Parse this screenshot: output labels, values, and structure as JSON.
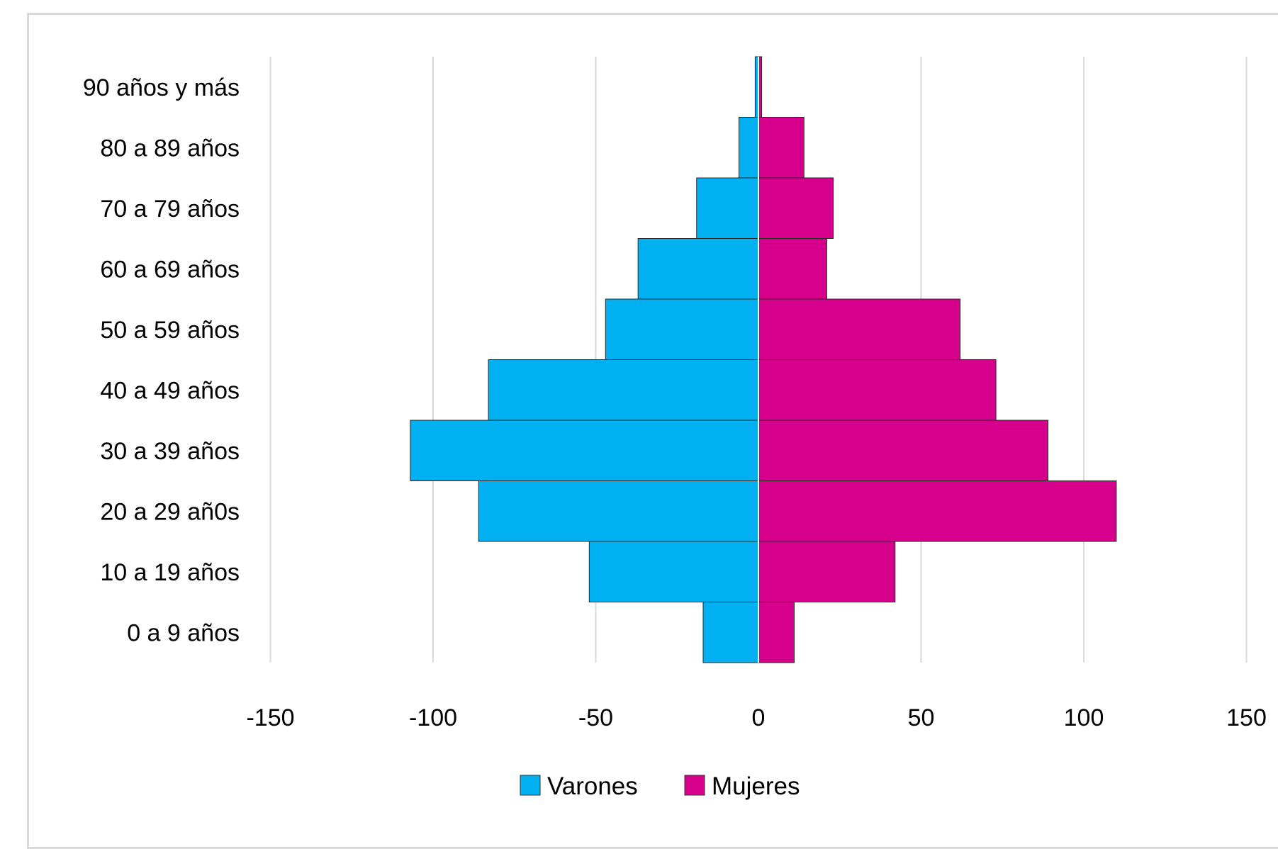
{
  "chart_data": {
    "type": "bar",
    "orientation": "horizontal",
    "layout": "population-pyramid",
    "categories": [
      "0 a 9 años",
      "10 a 19 años",
      "20 a 29 añ0s",
      "30 a 39 años",
      "40 a 49 años",
      "50 a 59 años",
      "60 a 69 años",
      "70 a 79 años",
      "80 a 89 años",
      "90 años y más"
    ],
    "series": [
      {
        "name": "Varones",
        "color": "#00b0f0",
        "values": [
          -17,
          -52,
          -86,
          -107,
          -83,
          -47,
          -37,
          -19,
          -6,
          -1
        ]
      },
      {
        "name": "Mujeres",
        "color": "#d6008c",
        "values": [
          11,
          42,
          110,
          89,
          73,
          62,
          21,
          23,
          14,
          1
        ]
      }
    ],
    "xlim": [
      -150,
      150
    ],
    "xticks": [
      -150,
      -100,
      -50,
      0,
      50,
      100,
      150
    ],
    "x_tick_labels": [
      "-150",
      "-100",
      "-50",
      "0",
      "50",
      "100",
      "150"
    ],
    "grid": true,
    "legend_position": "bottom",
    "title": "",
    "xlabel": "",
    "ylabel": ""
  }
}
